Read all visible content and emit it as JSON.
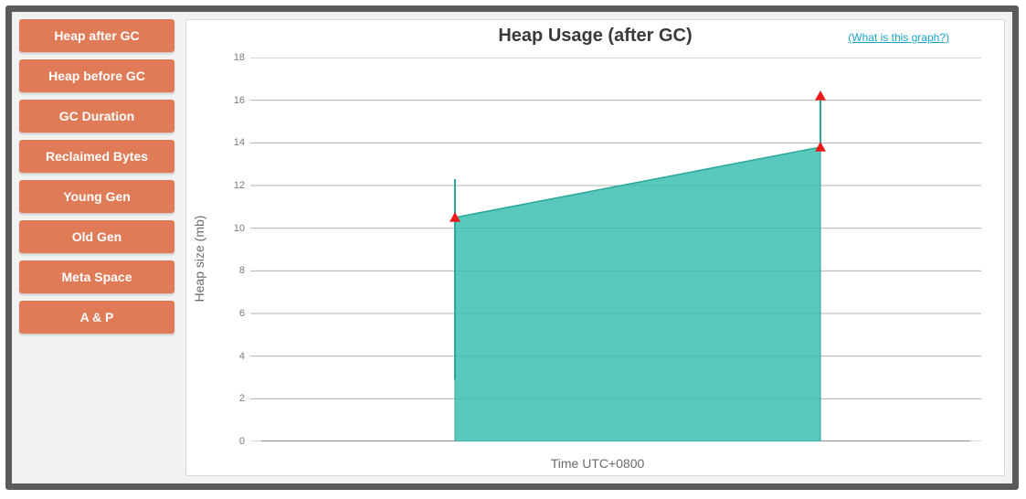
{
  "sidebar": {
    "items": [
      {
        "label": "Heap after GC"
      },
      {
        "label": "Heap before GC"
      },
      {
        "label": "GC Duration"
      },
      {
        "label": "Reclaimed Bytes"
      },
      {
        "label": "Young Gen"
      },
      {
        "label": "Old Gen"
      },
      {
        "label": "Meta Space"
      },
      {
        "label": "A & P"
      }
    ],
    "button_bg": "#e07b57",
    "button_fg": "#ffffff"
  },
  "chart": {
    "type": "area",
    "title": "Heap Usage (after GC)",
    "help_link_text": "(What is this graph?)",
    "help_link_color": "#1aa3cc",
    "ylabel": "Heap size (mb)",
    "xlabel": "Time UTC+0800",
    "ylim": [
      0,
      18
    ],
    "ytick_step": 2,
    "yticks": [
      0,
      2,
      4,
      6,
      8,
      10,
      12,
      14,
      16,
      18
    ],
    "x_range": [
      0,
      1
    ],
    "grid_color": "#6f6f6f",
    "grid_width": 1,
    "background_color": "#ffffff",
    "axis_color": "#6b6b6b",
    "label_color": "#6b6b6b",
    "tick_label_color": "#7a7a7a",
    "tick_fontsize": 11,
    "label_fontsize": 14,
    "title_fontsize": 20,
    "title_color": "#3a3a3a",
    "area_series": {
      "points": [
        {
          "x": 0.28,
          "y": 10.5
        },
        {
          "x": 0.78,
          "y": 13.8
        }
      ],
      "fill_color": "#3cc0b2",
      "fill_opacity": 0.85,
      "stroke_color": "#2aa99b",
      "stroke_width": 1
    },
    "error_bars": [
      {
        "x": 0.28,
        "low": 2.9,
        "high": 12.3,
        "color": "#2aa99b",
        "width": 2
      },
      {
        "x": 0.78,
        "low": 13.8,
        "high": 16.2,
        "color": "#2aa99b",
        "width": 2
      }
    ],
    "markers": [
      {
        "x": 0.28,
        "y": 10.5,
        "shape": "triangle-up",
        "color": "#ef1a1a",
        "size": 12
      },
      {
        "x": 0.78,
        "y": 13.8,
        "shape": "triangle-up",
        "color": "#ef1a1a",
        "size": 12
      },
      {
        "x": 0.78,
        "y": 16.2,
        "shape": "triangle-up",
        "color": "#ef1a1a",
        "size": 12
      }
    ],
    "x_line_bottom_extent": [
      0.015,
      0.985
    ]
  }
}
